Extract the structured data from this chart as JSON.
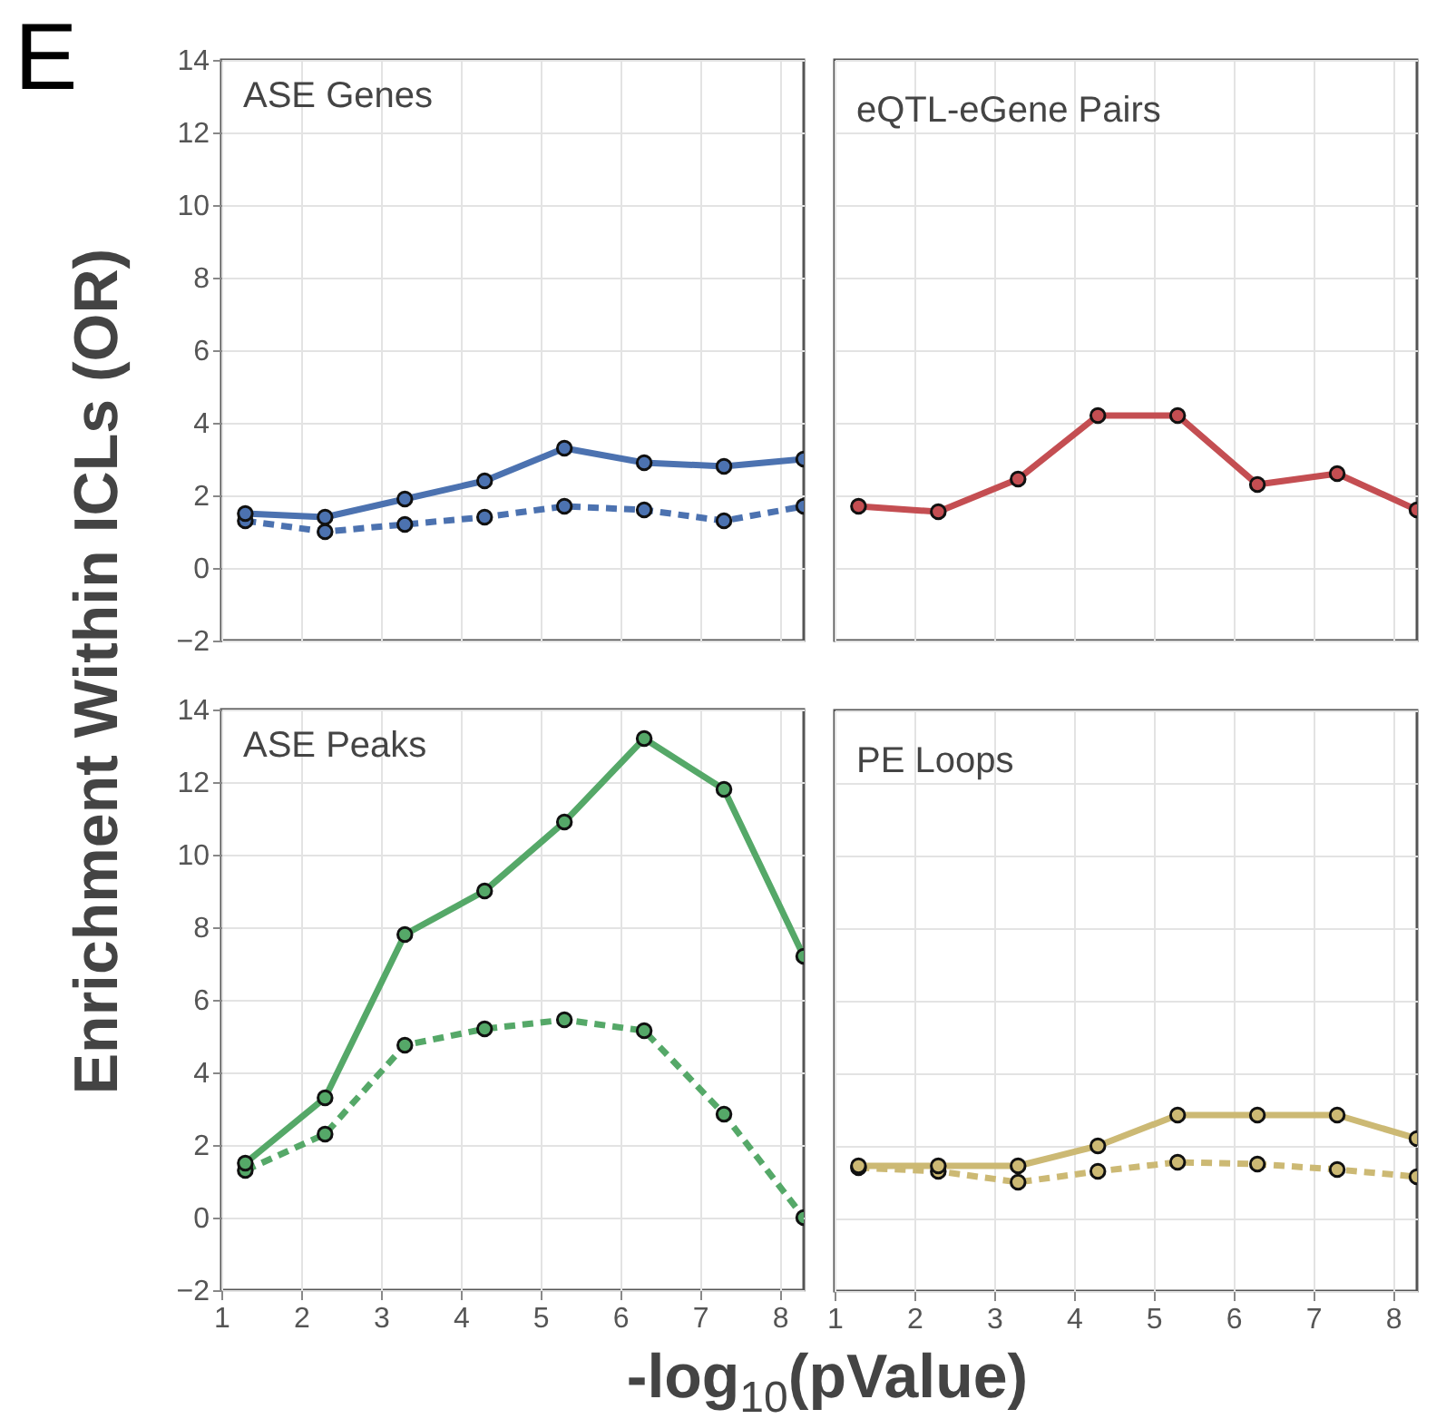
{
  "chart_data": [
    {
      "type": "line",
      "title": "ASE Genes",
      "ylabel": "Enrichment Within ICLs (OR)",
      "annotations": [
        "E"
      ],
      "x": [
        1.3,
        2.3,
        3.3,
        4.3,
        5.3,
        6.3,
        7.3,
        8.3
      ],
      "xlim": [
        1,
        8.3
      ],
      "xticks": [
        1,
        2,
        3,
        4,
        5,
        6,
        7,
        8
      ],
      "ylim": [
        -2,
        14
      ],
      "yticks": [
        -2,
        0,
        2,
        4,
        6,
        8,
        10,
        12,
        14
      ],
      "grid": true,
      "marker": "circle",
      "tick_labels": "y",
      "series": [
        {
          "color": "#4c72b0",
          "line_style": "solid",
          "values": [
            1.5,
            1.4,
            1.9,
            2.4,
            3.3,
            2.9,
            2.8,
            3.0
          ]
        },
        {
          "color": "#4c72b0",
          "line_style": "dashed",
          "values": [
            1.3,
            1.0,
            1.2,
            1.4,
            1.7,
            1.6,
            1.3,
            1.7
          ]
        }
      ]
    },
    {
      "type": "line",
      "title": "eQTL-eGene Pairs",
      "x": [
        1.3,
        2.3,
        3.3,
        4.3,
        5.3,
        6.3,
        7.3,
        8.3
      ],
      "xlim": [
        1,
        8.3
      ],
      "xticks": [
        1,
        2,
        3,
        4,
        5,
        6,
        7,
        8
      ],
      "ylim": [
        -2,
        14
      ],
      "yticks": [
        -2,
        0,
        2,
        4,
        6,
        8,
        10,
        12,
        14
      ],
      "grid": true,
      "marker": "circle",
      "tick_labels": false,
      "series": [
        {
          "color": "#c44e52",
          "line_style": "solid",
          "values": [
            1.7,
            1.55,
            2.45,
            4.2,
            4.2,
            2.3,
            2.6,
            1.6
          ]
        }
      ]
    },
    {
      "type": "line",
      "title": "ASE Peaks",
      "xlabel": "-log$_{10}$(pValue)",
      "x": [
        1.3,
        2.3,
        3.3,
        4.3,
        5.3,
        6.3,
        7.3,
        8.3
      ],
      "xlim": [
        1,
        8.3
      ],
      "xticks": [
        1,
        2,
        3,
        4,
        5,
        6,
        7,
        8
      ],
      "ylim": [
        -2,
        14
      ],
      "yticks": [
        -2,
        0,
        2,
        4,
        6,
        8,
        10,
        12,
        14
      ],
      "grid": true,
      "marker": "circle",
      "series": [
        {
          "color": "#55a868",
          "line_style": "solid",
          "values": [
            1.5,
            3.3,
            7.8,
            9.0,
            10.9,
            13.2,
            11.8,
            7.2
          ]
        },
        {
          "color": "#55a868",
          "line_style": "dashed",
          "values": [
            1.3,
            2.3,
            4.75,
            5.2,
            5.45,
            5.15,
            2.85,
            0.0
          ]
        }
      ]
    },
    {
      "type": "line",
      "title": "PE Loops",
      "x": [
        1.3,
        2.3,
        3.3,
        4.3,
        5.3,
        6.3,
        7.3,
        8.3
      ],
      "xlim": [
        1,
        8.3
      ],
      "xticks": [
        1,
        2,
        3,
        4,
        5,
        6,
        7,
        8
      ],
      "ylim": [
        -2,
        14
      ],
      "yticks": [
        -2,
        0,
        2,
        4,
        6,
        8,
        10,
        12,
        14
      ],
      "grid": true,
      "marker": "circle",
      "tick_labels": "x",
      "series": [
        {
          "color": "#ccb974",
          "line_style": "solid",
          "values": [
            1.45,
            1.45,
            1.45,
            2.0,
            2.85,
            2.85,
            2.85,
            2.2
          ]
        },
        {
          "color": "#ccb974",
          "line_style": "dashed",
          "values": [
            1.4,
            1.3,
            1.0,
            1.3,
            1.55,
            1.5,
            1.35,
            1.15
          ]
        }
      ]
    }
  ]
}
